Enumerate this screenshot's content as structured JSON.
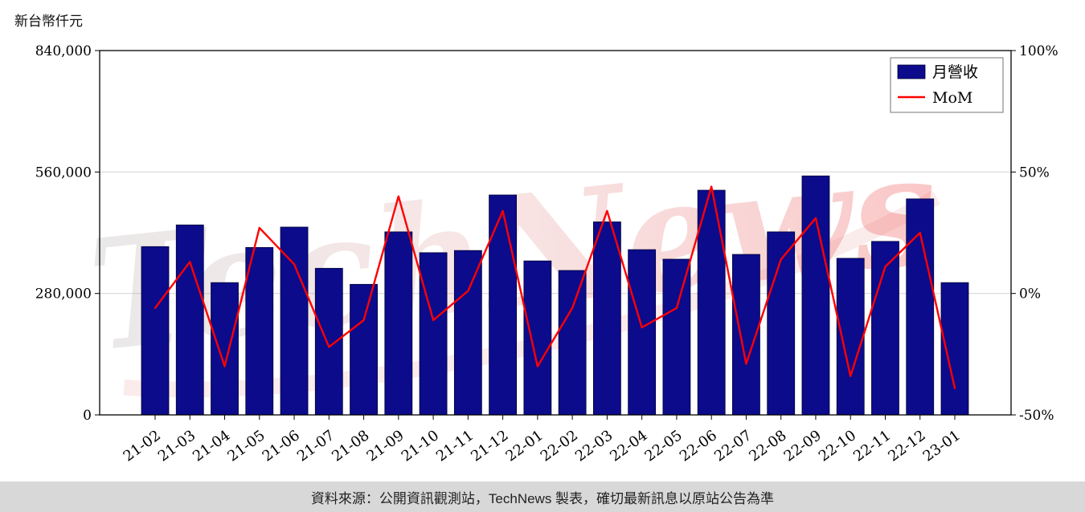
{
  "header": {
    "y_axis_title": "新台幣仟元"
  },
  "footer": {
    "caption": "資料來源：公開資訊觀測站，TechNews 製表，確切最新訊息以原站公告為準"
  },
  "watermark": {
    "text": "TechNews"
  },
  "chart_data": {
    "type": "bar",
    "title": "",
    "categories": [
      "21-02",
      "21-03",
      "21-04",
      "21-05",
      "21-06",
      "21-07",
      "21-08",
      "21-09",
      "21-10",
      "21-11",
      "21-12",
      "22-01",
      "22-02",
      "22-03",
      "22-04",
      "22-05",
      "22-06",
      "22-07",
      "22-08",
      "22-09",
      "22-10",
      "22-11",
      "22-12",
      "23-01"
    ],
    "series": [
      {
        "name": "月營收",
        "type": "bar",
        "axis": "left",
        "color": "#0b0b8c",
        "values": [
          388000,
          438000,
          305000,
          386000,
          433000,
          338000,
          301000,
          422000,
          374000,
          379000,
          507000,
          355000,
          333000,
          445000,
          381000,
          359000,
          518000,
          370000,
          422000,
          551000,
          361000,
          400000,
          498000,
          305000
        ]
      },
      {
        "name": "MoM",
        "type": "line",
        "axis": "right",
        "color": "#ff0000",
        "unit": "%",
        "values": [
          -6,
          13,
          -30,
          27,
          12,
          -22,
          -11,
          40,
          -11,
          1,
          34,
          -30,
          -6,
          34,
          -14,
          -6,
          44,
          -29,
          14,
          31,
          -34,
          11,
          25,
          -39
        ]
      }
    ],
    "left_axis": {
      "label": "新台幣仟元",
      "range": [
        0,
        840000
      ],
      "ticks": [
        0,
        280000,
        560000,
        840000
      ],
      "tick_labels": [
        "0",
        "280,000",
        "560,000",
        "840,000"
      ]
    },
    "right_axis": {
      "range": [
        -50,
        100
      ],
      "ticks": [
        -50,
        0,
        50,
        100
      ],
      "tick_labels": [
        "-50%",
        "0%",
        "50%",
        "100%"
      ]
    },
    "legend": {
      "position": "top-right",
      "entries": [
        "月營收",
        "MoM"
      ]
    },
    "grid": true
  }
}
